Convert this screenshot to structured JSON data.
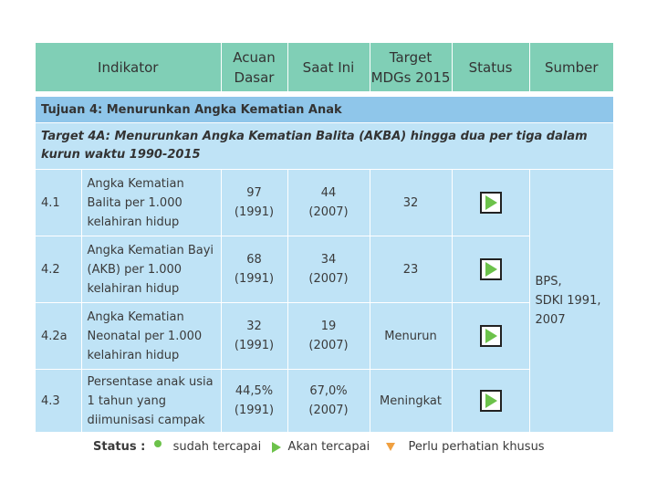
{
  "header": {
    "indikator": "Indikator",
    "acuan_l1": "Acuan",
    "acuan_l2": "Dasar",
    "saat_ini": "Saat Ini",
    "target_l1": "Target",
    "target_l2": "MDGs 2015",
    "status": "Status",
    "sumber": "Sumber"
  },
  "tujuan": "Tujuan 4:  Menurunkan Angka Kematian Anak",
  "target_desc": "Target 4A: Menurunkan Angka Kematian Balita (AKBA) hingga dua per tiga dalam kurun waktu 1990-2015",
  "rows": [
    {
      "no": "4.1",
      "indicator": "Angka Kematian Balita per 1.000 kelahiran hidup",
      "acuan_val": "97",
      "acuan_year": "(1991)",
      "saat_val": "44",
      "saat_year": "(2007)",
      "target": "32",
      "status": "akan-tercapai"
    },
    {
      "no": "4.2",
      "indicator": "Angka Kematian Bayi (AKB) per 1.000 kelahiran hidup",
      "acuan_val": "68",
      "acuan_year": "(1991)",
      "saat_val": "34",
      "saat_year": "(2007)",
      "target": "23",
      "status": "akan-tercapai"
    },
    {
      "no": "4.2a",
      "indicator": "Angka Kematian Neonatal per 1.000 kelahiran hidup",
      "acuan_val": "32",
      "acuan_year": "(1991)",
      "saat_val": "19",
      "saat_year": "(2007)",
      "target": "Menurun",
      "status": "akan-tercapai"
    },
    {
      "no": "4.3",
      "indicator": "Persentase anak usia 1 tahun yang diimunisasi campak",
      "acuan_val": "44,5%",
      "acuan_year": "(1991)",
      "saat_val": "67,0%",
      "saat_year": "(2007)",
      "target": "Meningkat",
      "status": "akan-tercapai"
    }
  ],
  "sumber": {
    "l1": "BPS,",
    "l2": "SDKI 1991,",
    "l3": "2007"
  },
  "legend": {
    "label": "Status :",
    "sudah": "sudah tercapai",
    "akan": "Akan tercapai",
    "perlu": "Perlu perhatian khusus"
  },
  "colors": {
    "header_bg": "#80cfb6",
    "tujuan_bg": "#8fc6ea",
    "body_bg": "#bfe3f6",
    "status_green": "#6cc24a",
    "status_orange": "#f0a040"
  }
}
